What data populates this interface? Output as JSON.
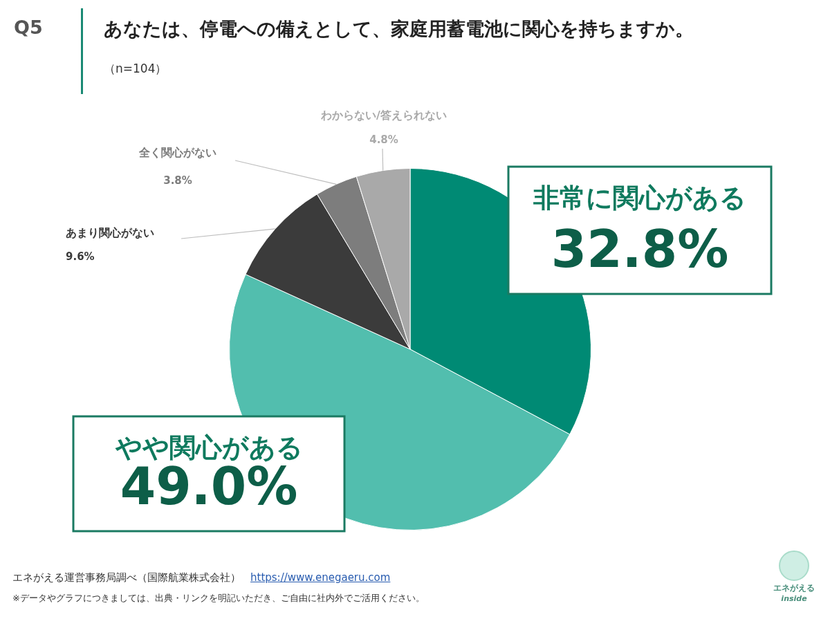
{
  "chart_data": {
    "type": "pie",
    "question": "Q5",
    "title": "あなたは、停電への備えとして、家庭用蓄電池に関心を持ちますか。",
    "subtitle": "（n=104）",
    "categories": [
      "非常に関心がある",
      "やや関心がある",
      "あまり関心がない",
      "全く関心がない",
      "わからない/答えられない"
    ],
    "values": [
      32.8,
      49.0,
      9.6,
      3.8,
      4.8
    ],
    "value_labels": [
      "32.8%",
      "49.0%",
      "9.6%",
      "3.8%",
      "4.8%"
    ],
    "colors": [
      "#008a74",
      "#52beae",
      "#3b3b3b",
      "#7d7d7d",
      "#a9a9a9"
    ],
    "data_labels": true,
    "source": "エネがえる運営事務局調べ（国際航業株式会社）",
    "source_url": "https://www.enegaeru.com",
    "note": "※データやグラフにつきましては、出典・リンクを明記いただき、ご自由に社内外でご活用ください。",
    "logo_text": "エネがえる",
    "logo_subtext": "inside"
  }
}
